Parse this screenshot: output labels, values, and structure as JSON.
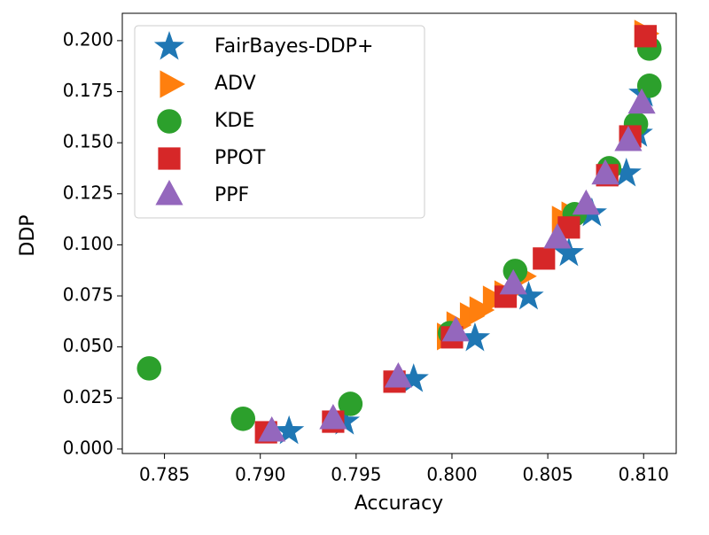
{
  "chart_data": {
    "type": "scatter",
    "xlabel": "Accuracy",
    "ylabel": "DDP",
    "xlim": [
      0.7828,
      0.8117
    ],
    "ylim": [
      -0.0022,
      0.2134
    ],
    "xticks": [
      0.785,
      {
        "value": 0.79,
        "label": "0.790"
      },
      0.795,
      {
        "value": 0.8,
        "label": "0.800"
      },
      0.805,
      {
        "value": 0.81,
        "label": "0.810"
      }
    ],
    "yticks": [
      {
        "value": 0,
        "label": "0.000"
      },
      0.025,
      {
        "value": 0.05,
        "label": "0.050"
      },
      0.075,
      {
        "value": 0.1,
        "label": "0.100"
      },
      0.125,
      {
        "value": 0.15,
        "label": "0.150"
      },
      0.175,
      {
        "value": 0.2,
        "label": "0.200"
      }
    ],
    "legend": "upper left",
    "series": [
      {
        "name": "FairBayes-DDP+",
        "color": "#1f77b4",
        "marker": "star",
        "x": [
          0.7915,
          0.7944,
          0.798,
          0.8012,
          0.804,
          0.8061,
          0.8073,
          0.8091,
          0.8097,
          0.81
        ],
        "values": [
          0.0087,
          0.0134,
          0.0342,
          0.0542,
          0.0746,
          0.0959,
          0.1154,
          0.1349,
          0.1544,
          0.174
        ]
      },
      {
        "name": "ADV",
        "color": "#ff7f0e",
        "marker": "triangle-right",
        "x": [
          0.7997,
          0.8002,
          0.8009,
          0.8014,
          0.8021,
          0.8027,
          0.8036,
          0.8057,
          0.8062,
          0.81
        ],
        "values": [
          0.0551,
          0.0607,
          0.0651,
          0.0681,
          0.0733,
          0.0759,
          0.0846,
          0.1124,
          0.1145,
          0.2035
        ]
      },
      {
        "name": "KDE",
        "color": "#2ca02c",
        "marker": "circle",
        "x": [
          0.7842,
          0.7891,
          0.7947,
          0.7999,
          0.8033,
          0.8064,
          0.8082,
          0.8096,
          0.8103,
          0.8103
        ],
        "values": [
          0.0395,
          0.0148,
          0.0221,
          0.0568,
          0.0872,
          0.115,
          0.1375,
          0.1592,
          0.1961,
          0.1779
        ]
      },
      {
        "name": "PPOT",
        "color": "#d62728",
        "marker": "square",
        "x": [
          0.7903,
          0.7938,
          0.797,
          0.8,
          0.8028,
          0.8048,
          0.8061,
          0.8081,
          0.8093,
          0.8101
        ],
        "values": [
          0.0082,
          0.0134,
          0.033,
          0.0547,
          0.0746,
          0.0933,
          0.1085,
          0.1341,
          0.1531,
          0.2022
        ]
      },
      {
        "name": "PPF",
        "color": "#9467bd",
        "marker": "triangle-up",
        "x": [
          0.7906,
          0.7938,
          0.7972,
          0.8002,
          0.8032,
          0.8055,
          0.807,
          0.808,
          0.8092,
          0.8099
        ],
        "values": [
          0.0082,
          0.0143,
          0.0347,
          0.0573,
          0.0803,
          0.1028,
          0.1193,
          0.1341,
          0.1505,
          0.1688
        ]
      }
    ]
  }
}
